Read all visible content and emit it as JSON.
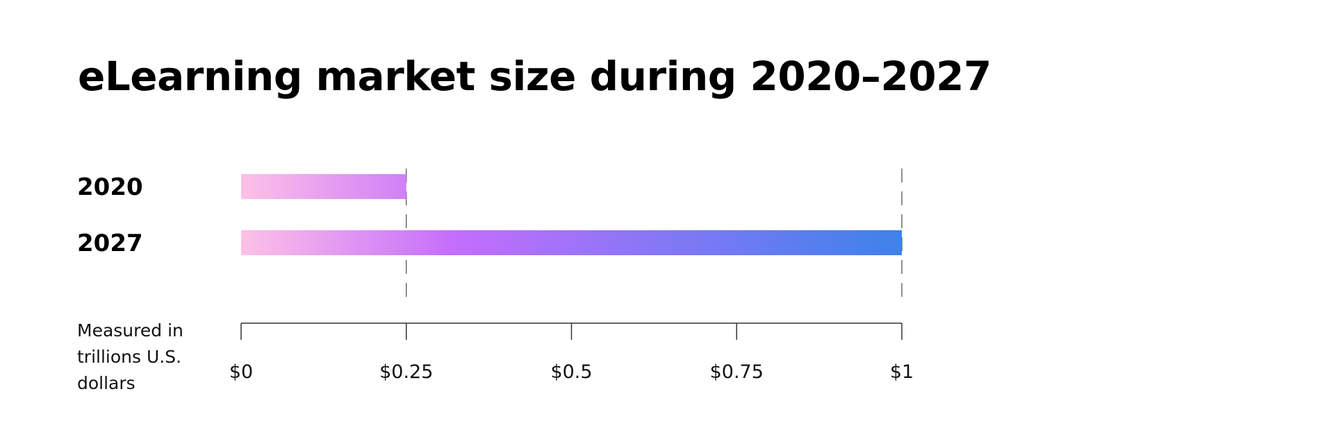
{
  "chart_data": {
    "type": "bar",
    "orientation": "horizontal",
    "title": "eLearning market size during 2020–2027",
    "categories": [
      "2020",
      "2027"
    ],
    "values": [
      0.25,
      1.0
    ],
    "xlabel": "Measured in trillions U.S. dollars",
    "ylabel": "",
    "xlim": [
      0,
      1
    ],
    "ticks": [
      0,
      0.25,
      0.5,
      0.75,
      1
    ],
    "tick_labels": [
      "$0",
      "$0.25",
      "$0.5",
      "$0.75",
      "$1"
    ],
    "grid": false,
    "reference_lines": [
      0.25,
      1
    ],
    "legend": "none"
  },
  "colors": {
    "gradient": [
      "#fdc1e6",
      "#c46efc",
      "#3d82ea"
    ],
    "axis": "#333333",
    "dashes": "#555555"
  }
}
